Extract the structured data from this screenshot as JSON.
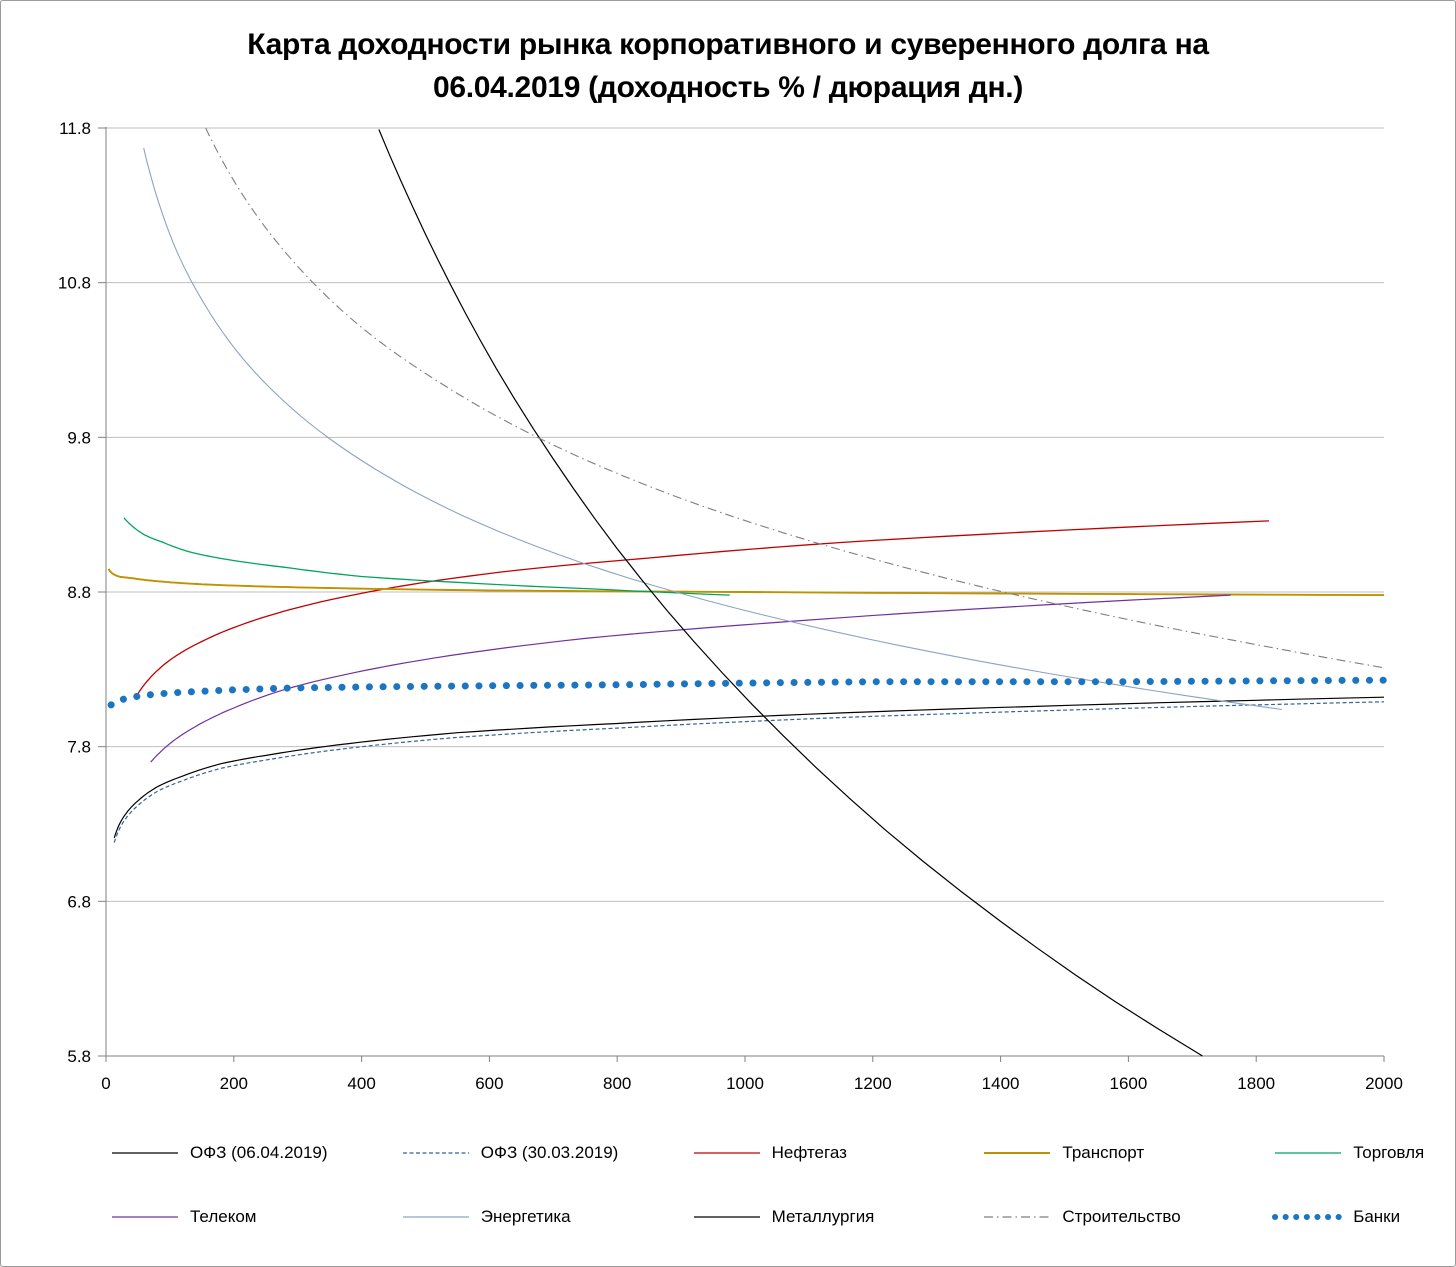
{
  "chart_data": {
    "type": "line",
    "title": "Карта доходности рынка корпоративного и суверенного долга на 06.04.2019 (доходность % / дюрация дн.)",
    "xlabel": "",
    "ylabel": "",
    "xlim": [
      0,
      2000
    ],
    "ylim": [
      5.8,
      11.8
    ],
    "x_ticks": [
      0,
      200,
      400,
      600,
      800,
      1000,
      1200,
      1400,
      1600,
      1800,
      2000
    ],
    "y_ticks": [
      5.8,
      6.8,
      7.8,
      8.8,
      9.8,
      10.8,
      11.8
    ],
    "grid": "horizontal",
    "grid_color": "#bfbfbf",
    "axis_color": "#808080",
    "legend_position": "bottom",
    "legend_rows": 2,
    "series": [
      {
        "name": "ОФЗ (06.04.2019)",
        "color": "#000000",
        "style": "solid",
        "width": 1.2,
        "points": [
          [
            13,
            7.21
          ],
          [
            20,
            7.29
          ],
          [
            30,
            7.36
          ],
          [
            50,
            7.45
          ],
          [
            80,
            7.54
          ],
          [
            120,
            7.61
          ],
          [
            180,
            7.69
          ],
          [
            260,
            7.75
          ],
          [
            380,
            7.82
          ],
          [
            550,
            7.89
          ],
          [
            800,
            7.95
          ],
          [
            1100,
            8.01
          ],
          [
            1450,
            8.06
          ],
          [
            1800,
            8.1
          ],
          [
            2000,
            8.12
          ]
        ]
      },
      {
        "name": "ОФЗ (30.03.2019)",
        "color": "#31659c",
        "style": "dashed",
        "width": 1.2,
        "points": [
          [
            13,
            7.18
          ],
          [
            20,
            7.26
          ],
          [
            30,
            7.33
          ],
          [
            50,
            7.42
          ],
          [
            80,
            7.51
          ],
          [
            120,
            7.58
          ],
          [
            180,
            7.66
          ],
          [
            260,
            7.72
          ],
          [
            380,
            7.79
          ],
          [
            550,
            7.86
          ],
          [
            800,
            7.92
          ],
          [
            1100,
            7.98
          ],
          [
            1450,
            8.03
          ],
          [
            1800,
            8.07
          ],
          [
            2000,
            8.09
          ]
        ]
      },
      {
        "name": "Нефтегаз",
        "color": "#c00000",
        "style": "solid",
        "width": 1.3,
        "points": [
          [
            48,
            8.13
          ],
          [
            70,
            8.25
          ],
          [
            100,
            8.36
          ],
          [
            150,
            8.48
          ],
          [
            220,
            8.6
          ],
          [
            320,
            8.72
          ],
          [
            450,
            8.83
          ],
          [
            620,
            8.93
          ],
          [
            850,
            9.02
          ],
          [
            1150,
            9.12
          ],
          [
            1500,
            9.2
          ],
          [
            1820,
            9.26
          ]
        ]
      },
      {
        "name": "Транспорт",
        "color": "#c09200",
        "style": "solid",
        "width": 1.9,
        "points": [
          [
            4,
            8.95
          ],
          [
            10,
            8.92
          ],
          [
            20,
            8.9
          ],
          [
            40,
            8.89
          ],
          [
            80,
            8.87
          ],
          [
            150,
            8.85
          ],
          [
            300,
            8.83
          ],
          [
            600,
            8.81
          ],
          [
            1000,
            8.8
          ],
          [
            1400,
            8.79
          ],
          [
            2000,
            8.78
          ]
        ]
      },
      {
        "name": "Торговля",
        "color": "#00a45f",
        "style": "solid",
        "width": 1.3,
        "points": [
          [
            28,
            9.28
          ],
          [
            40,
            9.23
          ],
          [
            60,
            9.17
          ],
          [
            90,
            9.12
          ],
          [
            130,
            9.06
          ],
          [
            190,
            9.01
          ],
          [
            280,
            8.96
          ],
          [
            400,
            8.9
          ],
          [
            560,
            8.86
          ],
          [
            760,
            8.82
          ],
          [
            976,
            8.78
          ]
        ]
      },
      {
        "name": "Телеком",
        "color": "#7030a0",
        "style": "solid",
        "width": 1.2,
        "points": [
          [
            70,
            7.7
          ],
          [
            100,
            7.82
          ],
          [
            140,
            7.93
          ],
          [
            200,
            8.05
          ],
          [
            280,
            8.17
          ],
          [
            390,
            8.28
          ],
          [
            540,
            8.39
          ],
          [
            750,
            8.5
          ],
          [
            1040,
            8.6
          ],
          [
            1400,
            8.7
          ],
          [
            1760,
            8.78
          ]
        ]
      },
      {
        "name": "Энергетика",
        "color": "#8ca3c4",
        "style": "solid",
        "width": 1.1,
        "points": [
          [
            59,
            11.67
          ],
          [
            80,
            11.35
          ],
          [
            110,
            11.01
          ],
          [
            150,
            10.69
          ],
          [
            210,
            10.33
          ],
          [
            290,
            9.99
          ],
          [
            400,
            9.65
          ],
          [
            560,
            9.29
          ],
          [
            780,
            8.94
          ],
          [
            1080,
            8.6
          ],
          [
            1480,
            8.27
          ],
          [
            1840,
            8.04
          ]
        ]
      },
      {
        "name": "Металлургия",
        "color": "#000000",
        "style": "solid",
        "width": 1.2,
        "points": [
          [
            427,
            11.79
          ],
          [
            480,
            11.29
          ],
          [
            540,
            10.78
          ],
          [
            610,
            10.25
          ],
          [
            700,
            9.66
          ],
          [
            800,
            9.08
          ],
          [
            920,
            8.48
          ],
          [
            1060,
            7.87
          ],
          [
            1220,
            7.26
          ],
          [
            1400,
            6.67
          ],
          [
            1580,
            6.15
          ],
          [
            1716,
            5.8
          ]
        ]
      },
      {
        "name": "Строительство",
        "color": "#7f7f7f",
        "style": "dashdot",
        "width": 1.1,
        "points": [
          [
            156,
            11.8
          ],
          [
            190,
            11.53
          ],
          [
            240,
            11.21
          ],
          [
            310,
            10.86
          ],
          [
            400,
            10.51
          ],
          [
            520,
            10.16
          ],
          [
            680,
            9.79
          ],
          [
            890,
            9.42
          ],
          [
            1160,
            9.06
          ],
          [
            1500,
            8.71
          ],
          [
            1800,
            8.46
          ],
          [
            2000,
            8.31
          ]
        ]
      },
      {
        "name": "Банки",
        "color": "#1b75c0",
        "style": "dots",
        "width": 7,
        "points": [
          [
            8,
            8.07
          ],
          [
            30,
            8.11
          ],
          [
            80,
            8.14
          ],
          [
            160,
            8.16
          ],
          [
            300,
            8.18
          ],
          [
            500,
            8.19
          ],
          [
            800,
            8.2
          ],
          [
            1200,
            8.22
          ],
          [
            1600,
            8.22
          ],
          [
            2000,
            8.23
          ]
        ]
      }
    ]
  }
}
